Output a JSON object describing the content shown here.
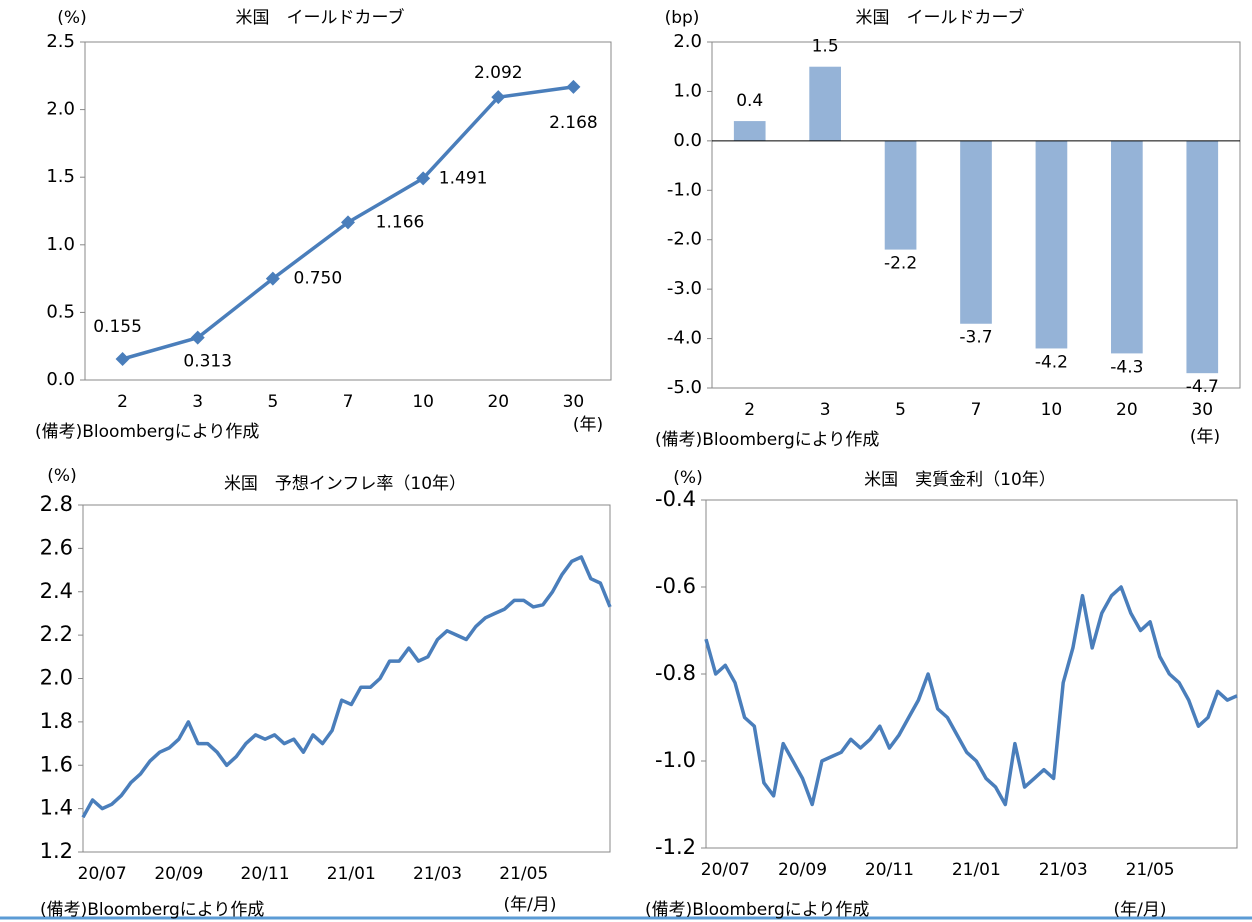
{
  "chart_data": [
    {
      "type": "line",
      "title": "米国　イールドカーブ",
      "y_unit": "(%)",
      "x_unit": "(年)",
      "note": "(備考)Bloombergにより作成",
      "categories": [
        "2",
        "3",
        "5",
        "7",
        "10",
        "20",
        "30"
      ],
      "values": [
        0.155,
        0.313,
        0.75,
        1.166,
        1.491,
        2.092,
        2.168
      ],
      "value_labels": [
        "0.155",
        "0.313",
        "0.750",
        "1.166",
        "1.491",
        "2.092",
        "2.168"
      ],
      "color": "#4a7ebb",
      "marker": "diamond",
      "ylim": [
        0,
        2.5
      ],
      "yticks": [
        {
          "value": 0,
          "label": "0.0"
        },
        0.5,
        {
          "value": 1,
          "label": "1.0"
        },
        1.5,
        {
          "value": 2,
          "label": "2.0"
        },
        2.5
      ]
    },
    {
      "type": "bar",
      "title": "米国　イールドカーブ",
      "y_unit": "(bp)",
      "x_unit": "(年)",
      "note": "(備考)Bloombergにより作成",
      "categories": [
        "2",
        "3",
        "5",
        "7",
        "10",
        "20",
        "30"
      ],
      "values": [
        0.4,
        1.5,
        -2.2,
        -3.7,
        -4.2,
        -4.3,
        -4.7
      ],
      "color": "#95b3d7",
      "ylim": [
        -5,
        2
      ],
      "yticks": [
        {
          "value": 2,
          "label": "2.0"
        },
        {
          "value": 1,
          "label": "1.0"
        },
        {
          "value": 0,
          "label": "0.0"
        },
        {
          "value": -1,
          "label": "-1.0"
        },
        {
          "value": -2,
          "label": "-2.0"
        },
        {
          "value": -3,
          "label": "-3.0"
        },
        {
          "value": -4,
          "label": "-4.0"
        },
        {
          "value": -5,
          "label": "-5.0"
        }
      ]
    },
    {
      "type": "line",
      "title": "米国　予想インフレ率（10年）",
      "y_unit": "(%)",
      "x_unit": "(年/月)",
      "note": "(備考)Bloombergにより作成",
      "categories": [
        null,
        null,
        "20/07",
        null,
        null,
        null,
        null,
        null,
        null,
        null,
        "20/09",
        null,
        null,
        null,
        null,
        null,
        null,
        null,
        null,
        "20/11",
        null,
        null,
        null,
        null,
        null,
        null,
        null,
        null,
        "21/01",
        null,
        null,
        null,
        null,
        null,
        null,
        null,
        null,
        "21/03",
        null,
        null,
        null,
        null,
        null,
        null,
        null,
        null,
        "21/05",
        null,
        null,
        null,
        null,
        null,
        null,
        null,
        null,
        null
      ],
      "values": [
        1.36,
        1.44,
        1.4,
        1.42,
        1.46,
        1.52,
        1.56,
        1.62,
        1.66,
        1.68,
        1.72,
        1.8,
        1.7,
        1.7,
        1.66,
        1.6,
        1.64,
        1.7,
        1.74,
        1.72,
        1.74,
        1.7,
        1.72,
        1.66,
        1.74,
        1.7,
        1.76,
        1.9,
        1.88,
        1.96,
        1.96,
        2.0,
        2.08,
        2.08,
        2.14,
        2.08,
        2.1,
        2.18,
        2.22,
        2.2,
        2.18,
        2.24,
        2.28,
        2.3,
        2.32,
        2.36,
        2.36,
        2.33,
        2.34,
        2.4,
        2.48,
        2.54,
        2.56,
        2.46,
        2.44,
        2.33
      ],
      "color": "#4a7ebb",
      "ylim": [
        1.2,
        2.8
      ],
      "yticks": [
        1.2,
        1.4,
        1.6,
        1.8,
        {
          "value": 2,
          "label": "2.0"
        },
        2.2,
        2.4,
        2.6,
        2.8
      ]
    },
    {
      "type": "line",
      "title": "米国　実質金利（10年）",
      "y_unit": "(%)",
      "x_unit": "(年/月)",
      "note": "(備考)Bloombergにより作成",
      "categories": [
        null,
        null,
        "20/07",
        null,
        null,
        null,
        null,
        null,
        null,
        null,
        "20/09",
        null,
        null,
        null,
        null,
        null,
        null,
        null,
        null,
        "20/11",
        null,
        null,
        null,
        null,
        null,
        null,
        null,
        null,
        "21/01",
        null,
        null,
        null,
        null,
        null,
        null,
        null,
        null,
        "21/03",
        null,
        null,
        null,
        null,
        null,
        null,
        null,
        null,
        "21/05",
        null,
        null,
        null,
        null,
        null,
        null,
        null,
        null,
        null
      ],
      "values": [
        -0.72,
        -0.8,
        -0.78,
        -0.82,
        -0.9,
        -0.92,
        -1.05,
        -1.08,
        -0.96,
        -1.0,
        -1.04,
        -1.1,
        -1.0,
        -0.99,
        -0.98,
        -0.95,
        -0.97,
        -0.95,
        -0.92,
        -0.97,
        -0.94,
        -0.9,
        -0.86,
        -0.8,
        -0.88,
        -0.9,
        -0.94,
        -0.98,
        -1.0,
        -1.04,
        -1.06,
        -1.1,
        -0.96,
        -1.06,
        -1.04,
        -1.02,
        -1.04,
        -0.82,
        -0.74,
        -0.62,
        -0.74,
        -0.66,
        -0.62,
        -0.6,
        -0.66,
        -0.7,
        -0.68,
        -0.76,
        -0.8,
        -0.82,
        -0.86,
        -0.92,
        -0.9,
        -0.84,
        -0.86,
        -0.85
      ],
      "color": "#4a7ebb",
      "ylim": [
        -1.2,
        -0.4
      ],
      "yticks": [
        -0.4,
        -0.6,
        -0.8,
        {
          "value": -1,
          "label": "-1.0"
        },
        -1.2
      ]
    }
  ]
}
